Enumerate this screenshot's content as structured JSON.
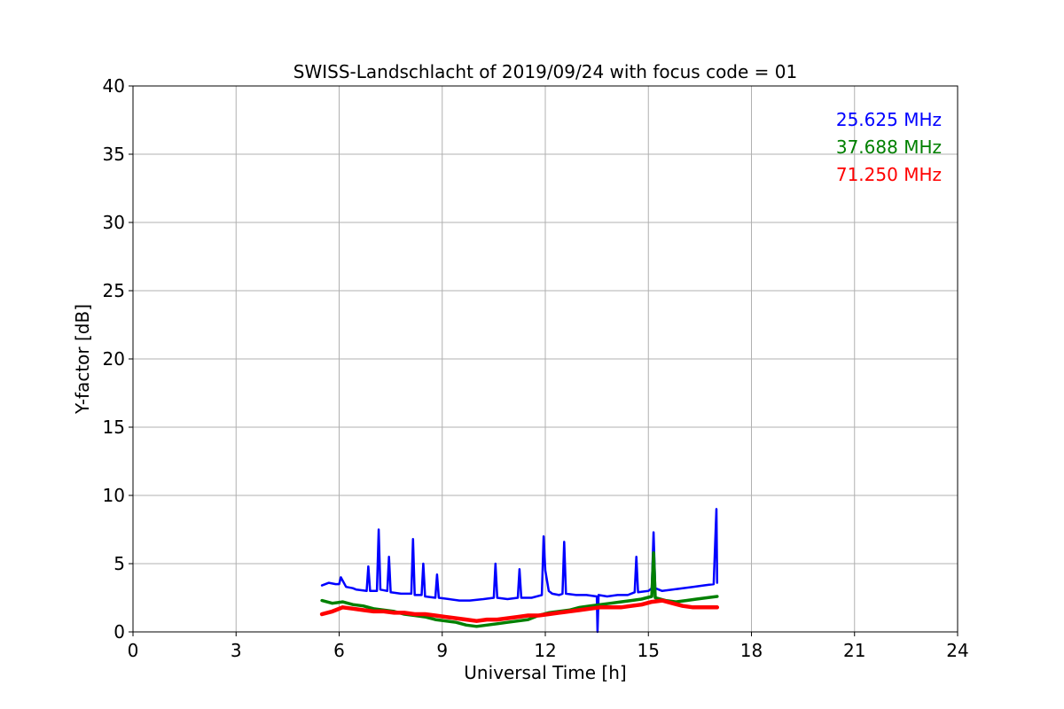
{
  "chart_data": {
    "type": "line",
    "title": "SWISS-Landschlacht of 2019/09/24 with focus code = 01",
    "xlabel": "Universal Time [h]",
    "ylabel": "Y-factor [dB]",
    "xlim": [
      0,
      24
    ],
    "ylim": [
      0,
      40
    ],
    "xticks": [
      "0",
      "3",
      "6",
      "9",
      "12",
      "15",
      "18",
      "21",
      "24"
    ],
    "yticks": [
      "0",
      "5",
      "10",
      "15",
      "20",
      "25",
      "30",
      "35",
      "40"
    ],
    "grid": true,
    "legend_placement": "top-right",
    "series": [
      {
        "name": "25.625 MHz",
        "color": "#0000ff",
        "x": [
          5.5,
          5.7,
          5.9,
          6.0,
          6.05,
          6.2,
          6.4,
          6.5,
          6.8,
          6.85,
          6.9,
          7.1,
          7.15,
          7.2,
          7.4,
          7.45,
          7.5,
          7.8,
          8.1,
          8.15,
          8.2,
          8.4,
          8.45,
          8.5,
          8.8,
          8.85,
          8.9,
          9.2,
          9.5,
          9.8,
          10.2,
          10.5,
          10.55,
          10.6,
          10.9,
          11.2,
          11.25,
          11.3,
          11.6,
          11.9,
          11.95,
          12.0,
          12.1,
          12.2,
          12.4,
          12.5,
          12.55,
          12.6,
          12.9,
          13.2,
          13.5,
          13.52,
          13.55,
          13.8,
          14.1,
          14.4,
          14.6,
          14.65,
          14.7,
          15.0,
          15.1,
          15.15,
          15.2,
          15.4,
          15.7,
          16.0,
          16.3,
          16.6,
          16.9,
          16.98,
          17.0
        ],
        "values": [
          3.4,
          3.6,
          3.5,
          3.5,
          4.0,
          3.3,
          3.2,
          3.1,
          3.0,
          4.8,
          3.0,
          3.0,
          7.5,
          3.1,
          3.0,
          5.5,
          2.9,
          2.8,
          2.8,
          6.8,
          2.7,
          2.7,
          5.0,
          2.6,
          2.5,
          4.2,
          2.5,
          2.4,
          2.3,
          2.3,
          2.4,
          2.5,
          5.0,
          2.5,
          2.4,
          2.5,
          4.6,
          2.5,
          2.5,
          2.7,
          7.0,
          4.5,
          3.0,
          2.8,
          2.7,
          2.8,
          6.6,
          2.8,
          2.7,
          2.7,
          2.6,
          0.0,
          2.7,
          2.6,
          2.7,
          2.7,
          2.9,
          5.5,
          2.9,
          3.0,
          3.2,
          7.3,
          3.2,
          3.0,
          3.1,
          3.2,
          3.3,
          3.4,
          3.5,
          9.0,
          3.6
        ]
      },
      {
        "name": "37.688 MHz",
        "color": "#008000",
        "x": [
          5.5,
          5.8,
          6.1,
          6.4,
          6.7,
          7.0,
          7.3,
          7.6,
          7.9,
          8.2,
          8.5,
          8.8,
          9.1,
          9.4,
          9.7,
          10.0,
          10.3,
          10.6,
          10.9,
          11.2,
          11.5,
          11.8,
          12.1,
          12.4,
          12.7,
          13.0,
          13.3,
          13.6,
          13.9,
          14.2,
          14.5,
          14.8,
          15.1,
          15.15,
          15.2,
          15.5,
          15.8,
          16.1,
          16.4,
          16.7,
          17.0
        ],
        "values": [
          2.3,
          2.1,
          2.2,
          2.0,
          1.9,
          1.7,
          1.6,
          1.5,
          1.3,
          1.2,
          1.1,
          0.9,
          0.8,
          0.7,
          0.5,
          0.4,
          0.5,
          0.6,
          0.7,
          0.8,
          0.9,
          1.2,
          1.4,
          1.5,
          1.6,
          1.8,
          1.9,
          2.0,
          2.1,
          2.2,
          2.3,
          2.4,
          2.6,
          5.8,
          2.5,
          2.3,
          2.2,
          2.3,
          2.4,
          2.5,
          2.6
        ]
      },
      {
        "name": "71.250 MHz",
        "color": "#ff0000",
        "x": [
          5.5,
          5.8,
          6.1,
          6.4,
          6.7,
          7.0,
          7.3,
          7.6,
          7.9,
          8.2,
          8.5,
          8.8,
          9.1,
          9.4,
          9.7,
          10.0,
          10.3,
          10.6,
          10.9,
          11.2,
          11.5,
          11.8,
          12.1,
          12.4,
          12.7,
          13.0,
          13.3,
          13.6,
          13.9,
          14.2,
          14.5,
          14.8,
          15.1,
          15.4,
          15.7,
          16.0,
          16.3,
          16.6,
          17.0
        ],
        "values": [
          1.3,
          1.5,
          1.8,
          1.7,
          1.6,
          1.5,
          1.5,
          1.4,
          1.4,
          1.3,
          1.3,
          1.2,
          1.1,
          1.0,
          0.9,
          0.8,
          0.9,
          0.9,
          1.0,
          1.1,
          1.2,
          1.2,
          1.3,
          1.4,
          1.5,
          1.6,
          1.7,
          1.8,
          1.8,
          1.8,
          1.9,
          2.0,
          2.2,
          2.3,
          2.1,
          1.9,
          1.8,
          1.8,
          1.8
        ]
      }
    ]
  }
}
